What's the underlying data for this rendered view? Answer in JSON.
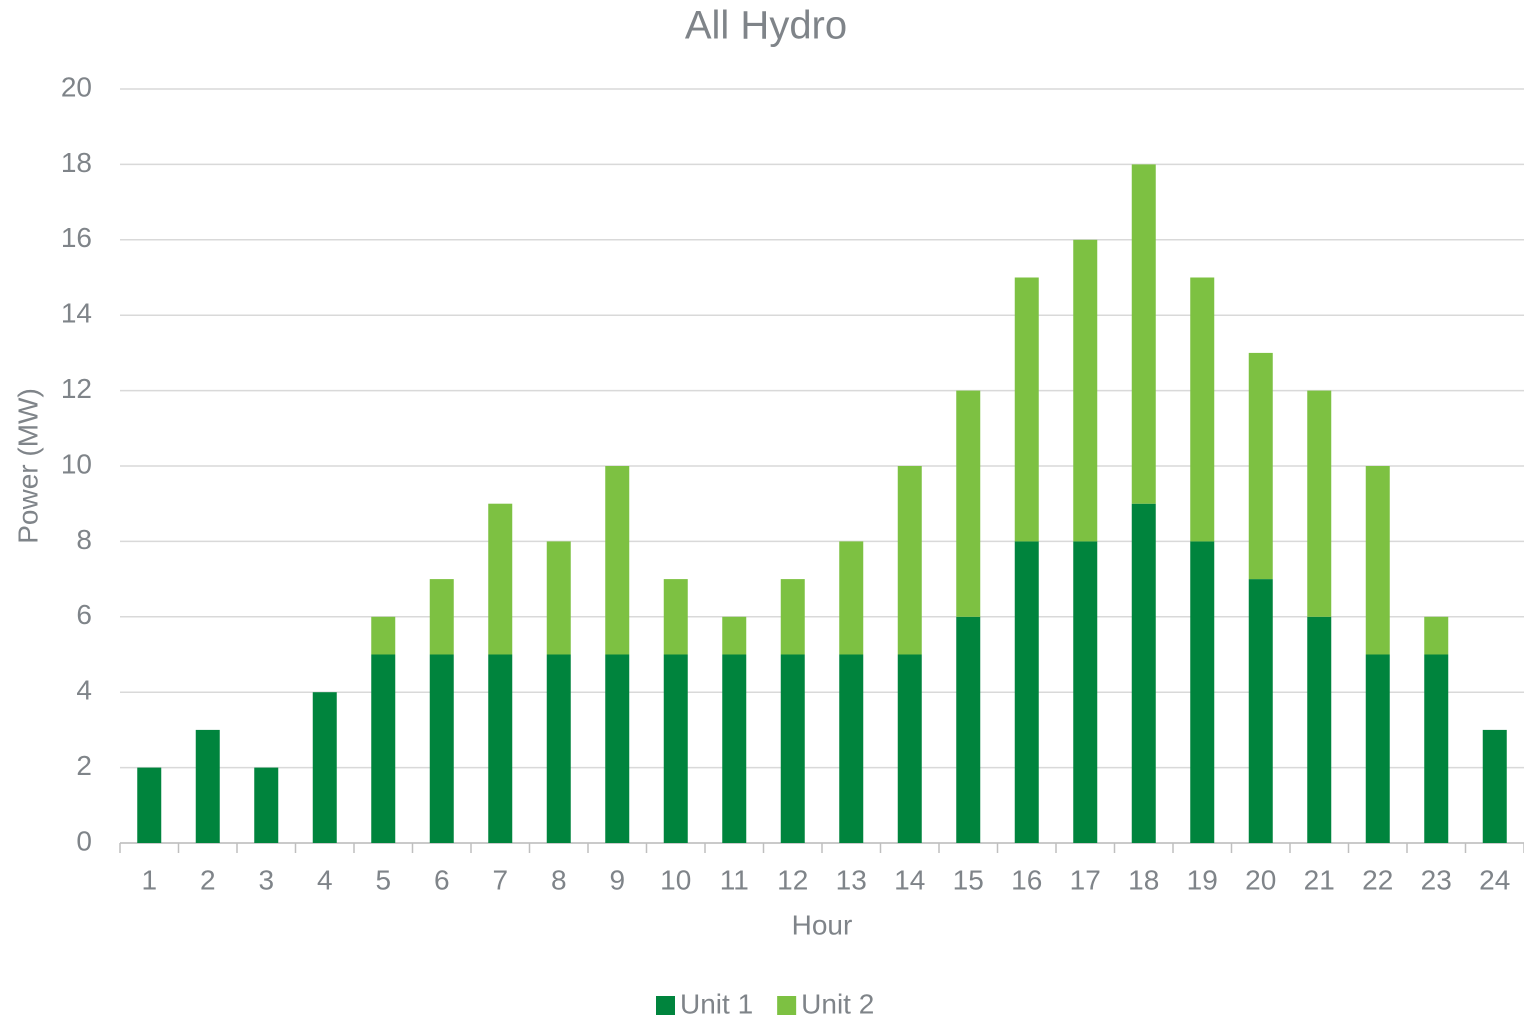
{
  "chart_data": {
    "type": "stacked_bar",
    "title": "All Hydro",
    "x_label": "Hour",
    "y_label": "Power (MW)",
    "categories": [
      "1",
      "2",
      "3",
      "4",
      "5",
      "6",
      "7",
      "8",
      "9",
      "10",
      "11",
      "12",
      "13",
      "14",
      "15",
      "16",
      "17",
      "18",
      "19",
      "20",
      "21",
      "22",
      "23",
      "24"
    ],
    "series": [
      {
        "name": "Unit 1",
        "color": "#00843d",
        "values": [
          2,
          3,
          2,
          4,
          5,
          5,
          5,
          5,
          5,
          5,
          5,
          5,
          5,
          5,
          6,
          8,
          8,
          9,
          8,
          7,
          6,
          5,
          5,
          3
        ]
      },
      {
        "name": "Unit 2",
        "color": "#7dc142",
        "values": [
          0,
          0,
          0,
          0,
          1,
          2,
          4,
          3,
          5,
          2,
          1,
          2,
          3,
          5,
          6,
          7,
          8,
          9,
          7,
          6,
          6,
          5,
          1,
          0
        ]
      }
    ],
    "ylim": [
      0,
      20
    ],
    "yticks": [
      0,
      2,
      4,
      6,
      8,
      10,
      12,
      14,
      16,
      18,
      20
    ],
    "grid": true,
    "legend": "bottom"
  }
}
